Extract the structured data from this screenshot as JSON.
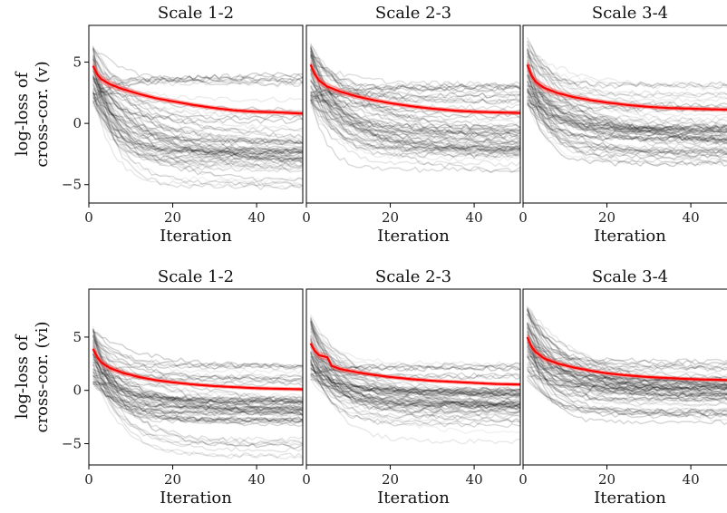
{
  "chart_data": {
    "type": "line",
    "colors": {
      "individual": "#000000",
      "mean": "#ff0000",
      "band": "#f06060"
    },
    "grid": false,
    "xlim": [
      0,
      51
    ],
    "xticks": [
      0,
      20,
      40
    ],
    "yticks": [
      -5,
      0,
      5
    ],
    "rows": [
      {
        "ylabel_lines": [
          "log-loss of",
          "cross-cor. (v)"
        ],
        "ylim": [
          -6.5,
          8
        ],
        "panels": [
          {
            "title": "Scale 1-2",
            "xlabel": "Iteration",
            "mean_series": {
              "name": "",
              "x": [
                1,
                2,
                3,
                5,
                8,
                12,
                16,
                20,
                25,
                30,
                35,
                40,
                45,
                51
              ],
              "y": [
                4.7,
                4.0,
                3.6,
                3.2,
                2.8,
                2.4,
                2.05,
                1.8,
                1.5,
                1.25,
                1.05,
                0.95,
                0.9,
                0.8
              ]
            },
            "bundle": {
              "start_range": [
                1.5,
                6.5
              ],
              "end_range": [
                -5.5,
                4.0
              ],
              "dense_end": -2.5
            }
          },
          {
            "title": "Scale 2-3",
            "xlabel": "Iteration",
            "mean_series": {
              "name": "",
              "x": [
                1,
                2,
                3,
                5,
                8,
                12,
                16,
                20,
                25,
                30,
                35,
                40,
                45,
                51
              ],
              "y": [
                4.8,
                4.0,
                3.5,
                3.0,
                2.6,
                2.2,
                1.9,
                1.65,
                1.4,
                1.2,
                1.05,
                0.95,
                0.9,
                0.85
              ]
            },
            "bundle": {
              "start_range": [
                1.5,
                6.5
              ],
              "end_range": [
                -4.2,
                3.5
              ],
              "dense_end": -1.5
            }
          },
          {
            "title": "Scale 3-4",
            "xlabel": "Iteration",
            "mean_series": {
              "name": "",
              "x": [
                1,
                2,
                3,
                5,
                8,
                12,
                16,
                20,
                25,
                30,
                35,
                40,
                45,
                51
              ],
              "y": [
                4.8,
                3.9,
                3.4,
                2.9,
                2.5,
                2.15,
                1.9,
                1.7,
                1.5,
                1.35,
                1.25,
                1.2,
                1.15,
                1.1
              ]
            },
            "bundle": {
              "start_range": [
                1.5,
                7.0
              ],
              "end_range": [
                -3.5,
                3.2
              ],
              "dense_end": -1.3
            }
          }
        ]
      },
      {
        "ylabel_lines": [
          "log-loss of",
          "cross-cor. (vi)"
        ],
        "ylim": [
          -7,
          9.5
        ],
        "panels": [
          {
            "title": "Scale 1-2",
            "xlabel": "Iteration",
            "mean_series": {
              "name": "",
              "x": [
                1,
                2,
                3,
                5,
                8,
                12,
                16,
                20,
                25,
                30,
                35,
                40,
                45,
                51
              ],
              "y": [
                3.9,
                3.1,
                2.6,
                2.1,
                1.65,
                1.25,
                0.95,
                0.75,
                0.55,
                0.4,
                0.3,
                0.2,
                0.15,
                0.1
              ]
            },
            "bundle": {
              "start_range": [
                0.5,
                6.0
              ],
              "end_range": [
                -6.3,
                2.4
              ],
              "dense_end": -1.8
            }
          },
          {
            "title": "Scale 2-3",
            "xlabel": "Iteration",
            "mean_series": {
              "name": "",
              "x": [
                1,
                2,
                3,
                5,
                6,
                8,
                12,
                16,
                20,
                25,
                30,
                35,
                40,
                45,
                51
              ],
              "y": [
                4.4,
                3.7,
                3.3,
                3.1,
                2.3,
                2.0,
                1.7,
                1.45,
                1.25,
                1.05,
                0.9,
                0.8,
                0.7,
                0.6,
                0.55
              ]
            },
            "bundle": {
              "start_range": [
                1.0,
                7.0
              ],
              "end_range": [
                -5.0,
                3.0
              ],
              "dense_end": -1.0
            }
          },
          {
            "title": "Scale 3-4",
            "xlabel": "Iteration",
            "mean_series": {
              "name": "",
              "x": [
                1,
                2,
                3,
                5,
                8,
                12,
                16,
                20,
                25,
                30,
                35,
                40,
                45,
                51
              ],
              "y": [
                5.0,
                4.1,
                3.6,
                3.0,
                2.55,
                2.15,
                1.85,
                1.6,
                1.4,
                1.25,
                1.15,
                1.05,
                1.0,
                0.95
              ]
            },
            "bundle": {
              "start_range": [
                1.0,
                8.0
              ],
              "end_range": [
                -3.5,
                3.2
              ],
              "dense_end": 0.0
            }
          }
        ]
      }
    ]
  }
}
